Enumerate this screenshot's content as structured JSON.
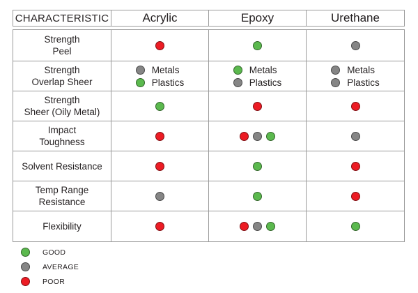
{
  "colors": {
    "good": "#5bb94e",
    "average": "#858585",
    "poor": "#ec1c24"
  },
  "headers": [
    "CHARACTERISTIC",
    "Acrylic",
    "Epoxy",
    "Urethane"
  ],
  "rows": [
    {
      "characteristic": [
        "Strength",
        "Peel"
      ],
      "cells": [
        {
          "type": "dots",
          "ratings": [
            "poor"
          ]
        },
        {
          "type": "dots",
          "ratings": [
            "good"
          ]
        },
        {
          "type": "dots",
          "ratings": [
            "average"
          ]
        }
      ]
    },
    {
      "characteristic": [
        "Strength",
        "Overlap Sheer"
      ],
      "cells": [
        {
          "type": "pair",
          "items": [
            {
              "rating": "average",
              "label": "Metals"
            },
            {
              "rating": "good",
              "label": "Plastics"
            }
          ]
        },
        {
          "type": "pair",
          "items": [
            {
              "rating": "good",
              "label": "Metals"
            },
            {
              "rating": "average",
              "label": "Plastics"
            }
          ]
        },
        {
          "type": "pair",
          "items": [
            {
              "rating": "average",
              "label": "Metals"
            },
            {
              "rating": "average",
              "label": "Plastics"
            }
          ]
        }
      ]
    },
    {
      "characteristic": [
        "Strength",
        "Sheer (Oily Metal)"
      ],
      "cells": [
        {
          "type": "dots",
          "ratings": [
            "good"
          ]
        },
        {
          "type": "dots",
          "ratings": [
            "poor"
          ]
        },
        {
          "type": "dots",
          "ratings": [
            "poor"
          ]
        }
      ]
    },
    {
      "characteristic": [
        "Impact",
        "Toughness"
      ],
      "cells": [
        {
          "type": "dots",
          "ratings": [
            "poor"
          ]
        },
        {
          "type": "dots",
          "ratings": [
            "poor",
            "average",
            "good"
          ]
        },
        {
          "type": "dots",
          "ratings": [
            "average"
          ]
        }
      ]
    },
    {
      "characteristic": [
        "Solvent Resistance"
      ],
      "cells": [
        {
          "type": "dots",
          "ratings": [
            "poor"
          ]
        },
        {
          "type": "dots",
          "ratings": [
            "good"
          ]
        },
        {
          "type": "dots",
          "ratings": [
            "poor"
          ]
        }
      ]
    },
    {
      "characteristic": [
        "Temp Range",
        "Resistance"
      ],
      "cells": [
        {
          "type": "dots",
          "ratings": [
            "average"
          ]
        },
        {
          "type": "dots",
          "ratings": [
            "good"
          ]
        },
        {
          "type": "dots",
          "ratings": [
            "poor"
          ]
        }
      ]
    },
    {
      "characteristic": [
        "Flexibility"
      ],
      "cells": [
        {
          "type": "dots",
          "ratings": [
            "poor"
          ]
        },
        {
          "type": "dots",
          "ratings": [
            "poor",
            "average",
            "good"
          ]
        },
        {
          "type": "dots",
          "ratings": [
            "good"
          ]
        }
      ]
    }
  ],
  "legend": [
    {
      "rating": "good",
      "label": "GOOD"
    },
    {
      "rating": "average",
      "label": "AVERAGE"
    },
    {
      "rating": "poor",
      "label": "POOR"
    }
  ]
}
